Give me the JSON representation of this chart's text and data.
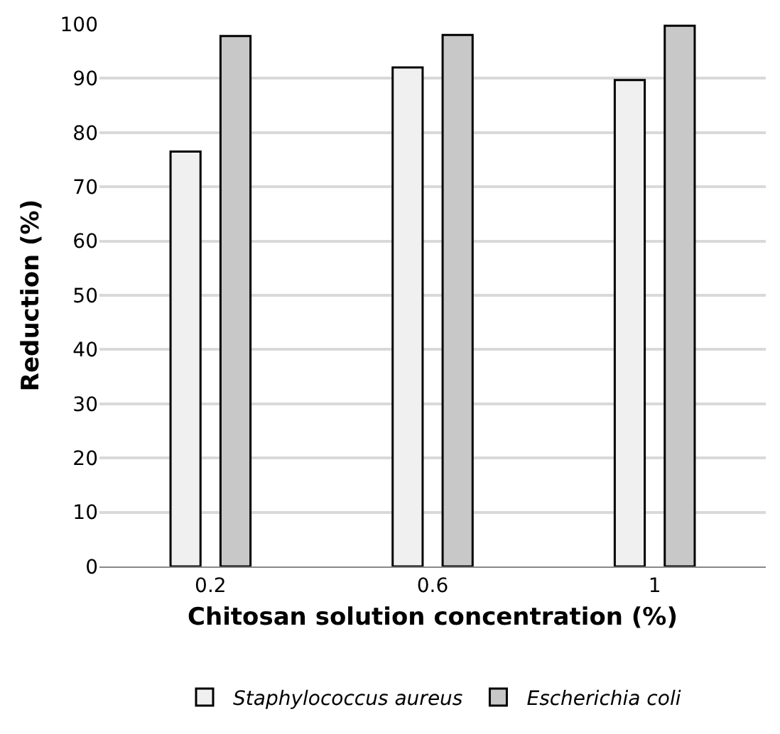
{
  "chart_data": {
    "type": "bar",
    "xlabel": "Chitosan solution concentration (%)",
    "ylabel": "Reduction (%)",
    "categories": [
      "0.2",
      "0.6",
      "1"
    ],
    "series": [
      {
        "name": "Staphylococcus aureus",
        "color": "#f0f0f0",
        "values": [
          76.5,
          92,
          89.7
        ]
      },
      {
        "name": "Escherichia coli",
        "color": "#c8c8c8",
        "values": [
          97.8,
          98,
          99.7
        ]
      }
    ],
    "ylim": [
      0,
      100
    ],
    "yticks": [
      0,
      10,
      20,
      30,
      40,
      50,
      60,
      70,
      80,
      90,
      100
    ],
    "grid": "y",
    "legend": "bottom"
  }
}
